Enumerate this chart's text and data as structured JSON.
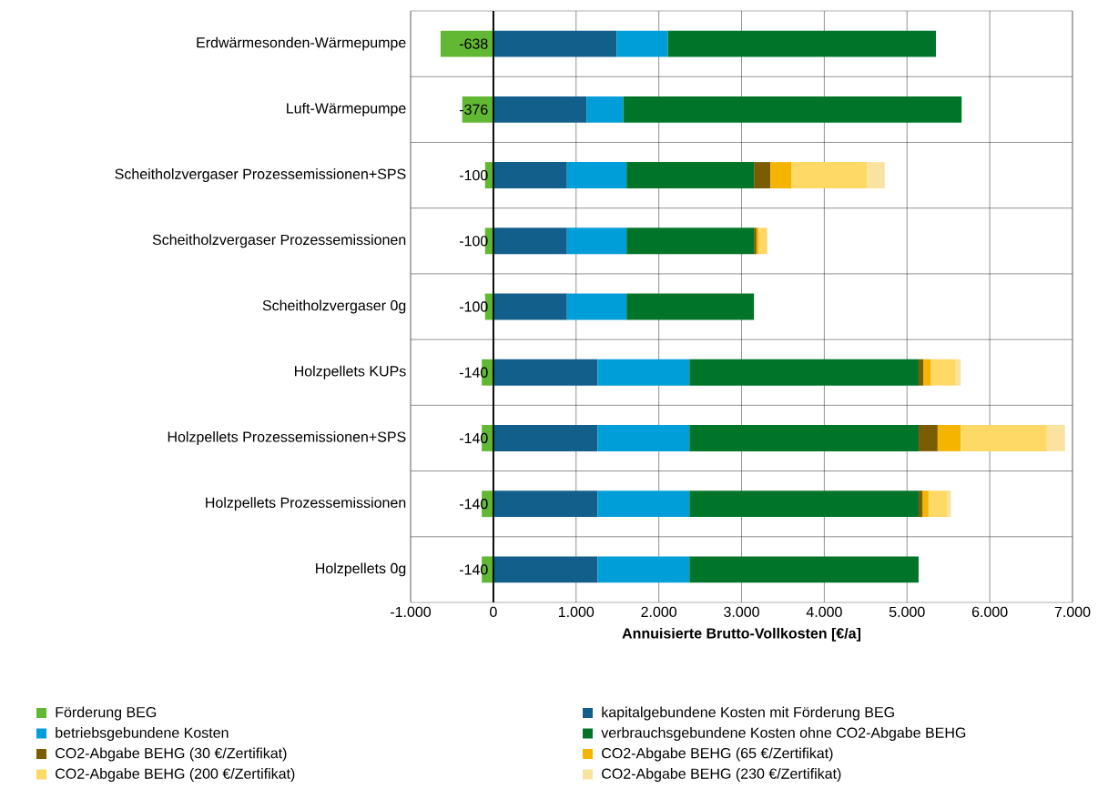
{
  "chart_data": {
    "type": "bar",
    "orientation": "horizontal",
    "stacked": true,
    "xlabel": "Annuisierte Brutto-Vollkosten [€/a]",
    "categories": [
      "Erdwärmesonden-Wärmepumpe",
      "Luft-Wärmepumpe",
      "Scheitholzvergaser Prozessemissionen+SPS",
      "Scheitholzvergaser Prozessemissionen",
      "Scheitholzvergaser 0g",
      "Holzpellets KUPs",
      "Holzpellets Prozessemissionen+SPS",
      "Holzpellets Prozessemissionen",
      "Holzpellets 0g"
    ],
    "series": [
      {
        "name": "Förderung BEG",
        "color": "#62b733",
        "values": [
          -638,
          -376,
          -100,
          -100,
          -100,
          -140,
          -140,
          -140,
          -140
        ],
        "value_labels": [
          "-638",
          "-376",
          "-100",
          "-100",
          "-100",
          "-140",
          "-140",
          "-140",
          "-140"
        ]
      },
      {
        "name": "kapitalgebundene Kosten mit Förderung BEG",
        "color": "#135f8c",
        "values": [
          1490,
          1130,
          890,
          890,
          890,
          1260,
          1260,
          1260,
          1260
        ]
      },
      {
        "name": "betriebsgebundene Kosten",
        "color": "#009ed8",
        "values": [
          620,
          440,
          720,
          720,
          720,
          1110,
          1110,
          1110,
          1110
        ]
      },
      {
        "name": "verbrauchsgebundene Kosten ohne CO2-Abgabe BEHG",
        "color": "#00752a",
        "values": [
          3240,
          4090,
          1540,
          1540,
          1540,
          2770,
          2770,
          2770,
          2770
        ]
      },
      {
        "name": "CO2-Abgabe BEHG (30 €/Zertifikat)",
        "color": "#7b5c00",
        "values": [
          null,
          null,
          200,
          30,
          null,
          60,
          230,
          50,
          null
        ]
      },
      {
        "name": "CO2-Abgabe BEHG (65 €/Zertifikat)",
        "color": "#f5b400",
        "values": [
          null,
          null,
          250,
          30,
          null,
          90,
          280,
          70,
          null
        ]
      },
      {
        "name": "CO2-Abgabe BEHG (200 €/Zertifikat)",
        "color": "#ffd966",
        "values": [
          null,
          null,
          920,
          100,
          null,
          300,
          1040,
          230,
          null
        ]
      },
      {
        "name": "CO2-Abgabe BEHG (230 €/Zertifikat)",
        "color": "#fae3a0",
        "values": [
          null,
          null,
          210,
          null,
          null,
          60,
          220,
          40,
          null
        ]
      }
    ],
    "xlim": [
      -1000,
      7000
    ],
    "xticks": [
      {
        "value": -1000,
        "label": "-1.000"
      },
      0,
      {
        "value": 1000,
        "label": "1.000"
      },
      {
        "value": 2000,
        "label": "2.000"
      },
      {
        "value": 3000,
        "label": "3.000"
      },
      {
        "value": 4000,
        "label": "4.000"
      },
      {
        "value": 5000,
        "label": "5.000"
      },
      {
        "value": 6000,
        "label": "6.000"
      },
      {
        "value": 7000,
        "label": "7.000"
      }
    ],
    "grid": true,
    "legend": "bottom"
  }
}
